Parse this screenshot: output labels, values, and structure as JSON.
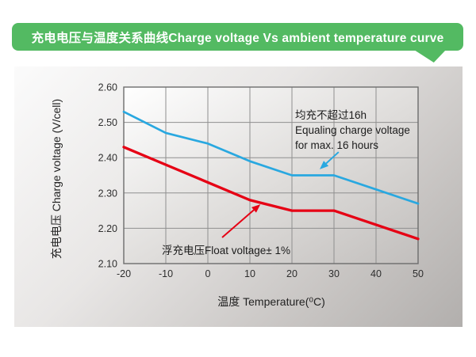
{
  "header": {
    "title": "充电电压与温度关系曲线Charge voltage Vs ambient temperature curve",
    "banner_color": "#53ba62",
    "title_text_color": "#ffffff"
  },
  "chart_data": {
    "type": "line",
    "title": "充电电压与温度关系曲线Charge voltage Vs ambient temperature curve",
    "xlabel": "温度 Temperature(⁰C)",
    "ylabel": "充电电压 Charge voltage (V/cell)",
    "xlim": [
      -20,
      50
    ],
    "ylim": [
      2.1,
      2.6
    ],
    "grid": true,
    "legend_position": "none",
    "x_ticks": [
      "-20",
      "-10",
      "0",
      "10",
      "20",
      "30",
      "40",
      "50"
    ],
    "y_ticks": [
      "2.60",
      "2.50",
      "2.40",
      "2.30",
      "2.20",
      "2.10"
    ],
    "x": [
      -20,
      -10,
      0,
      10,
      20,
      30,
      40,
      50
    ],
    "series": [
      {
        "name": "equalizing-charge-voltage",
        "color": "#29a8e0",
        "values": [
          2.53,
          2.47,
          2.44,
          2.39,
          2.35,
          2.35,
          2.31,
          2.27
        ]
      },
      {
        "name": "float-charge-voltage",
        "color": "#e60014",
        "values": [
          2.43,
          2.38,
          2.33,
          2.28,
          2.25,
          2.25,
          2.21,
          2.17
        ]
      }
    ],
    "annotations": [
      {
        "id": "equalize-note",
        "lines": [
          "均充不超过16h",
          "Equaling charge voltage",
          "for max. 16 hours"
        ],
        "color": "#29a8e0",
        "arrow": {
          "from": [
            31.1,
            2.416
          ],
          "to": [
            26.6,
            2.367
          ]
        }
      },
      {
        "id": "float-note",
        "lines": [
          "浮充电压Float voltage± 1%"
        ],
        "color": "#e60014",
        "arrow": {
          "from": [
            3.4,
            2.174
          ],
          "to": [
            12.5,
            2.268
          ]
        }
      }
    ]
  }
}
